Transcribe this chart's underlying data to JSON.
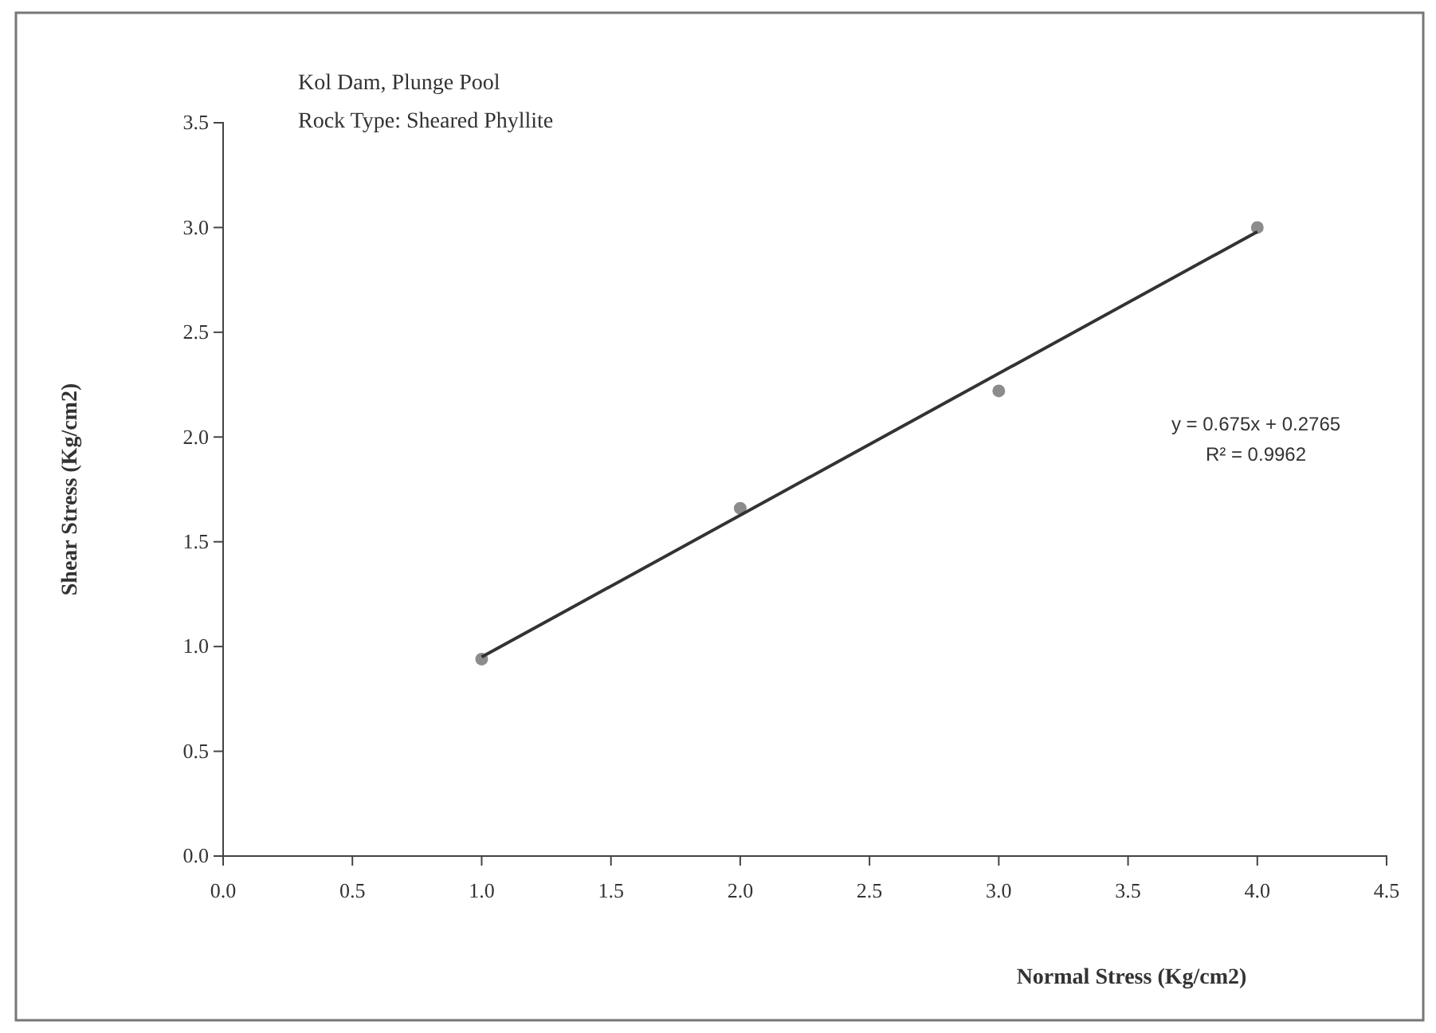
{
  "chart_data": {
    "type": "scatter",
    "title": "Kol Dam, Plunge Pool",
    "subtitle": "Rock Type: Sheared Phyllite",
    "xlabel": "Normal Stress (Kg/cm2)",
    "ylabel": "Shear Stress (Kg/cm2)",
    "x": [
      1.0,
      2.0,
      3.0,
      4.0
    ],
    "series": [
      {
        "color": "#8c8c8c",
        "values": [
          0.94,
          1.66,
          2.22,
          3.0
        ],
        "marker": "circle"
      },
      {
        "type": "line",
        "color": "#333333",
        "x": [
          1.0,
          4.0
        ],
        "values": [
          0.95,
          2.98
        ],
        "marker": "none"
      }
    ],
    "annotations": [
      "y = 0.675x + 0.2765",
      "R² = 0.9962"
    ],
    "xlim": [
      0,
      4.5
    ],
    "xticks": [
      {
        "value": 0,
        "label": "0.0"
      },
      0.5,
      {
        "value": 1,
        "label": "1.0"
      },
      1.5,
      {
        "value": 2,
        "label": "2.0"
      },
      2.5,
      {
        "value": 3,
        "label": "3.0"
      },
      3.5,
      {
        "value": 4,
        "label": "4.0"
      },
      4.5
    ],
    "ylim": [
      0,
      3.5
    ],
    "yticks": [
      {
        "value": 0,
        "label": "0.0"
      },
      0.5,
      {
        "value": 1,
        "label": "1.0"
      },
      1.5,
      {
        "value": 2,
        "label": "2.0"
      },
      2.5,
      {
        "value": 3,
        "label": "3.0"
      },
      3.5
    ],
    "grid": false
  }
}
